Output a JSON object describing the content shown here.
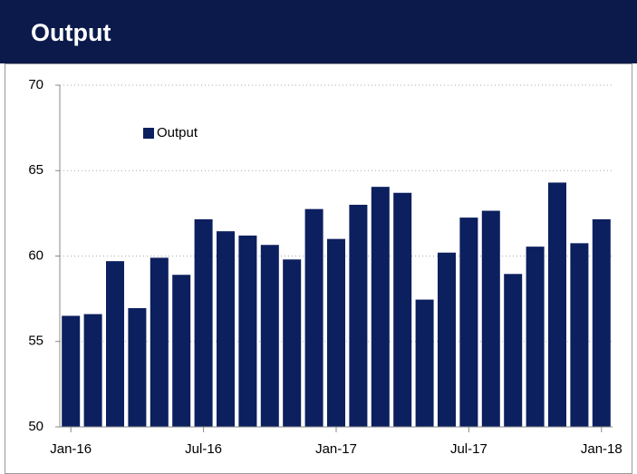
{
  "chart_data": {
    "type": "bar",
    "title": "Output",
    "categories": [
      "Jan-16",
      null,
      null,
      null,
      null,
      null,
      "Jul-16",
      null,
      null,
      null,
      null,
      null,
      "Jan-17",
      null,
      null,
      null,
      null,
      null,
      "Jul-17",
      null,
      null,
      null,
      null,
      null,
      "Jan-18"
    ],
    "series": [
      {
        "name": "Output",
        "color": "#0c1f5e",
        "values": [
          56.5,
          56.6,
          59.7,
          56.95,
          59.9,
          58.9,
          62.15,
          61.45,
          61.2,
          60.65,
          59.8,
          62.75,
          61.0,
          63.0,
          64.05,
          63.7,
          57.45,
          60.2,
          62.25,
          62.65,
          58.95,
          60.55,
          64.3,
          60.75,
          62.15
        ]
      }
    ],
    "ylim": [
      50,
      70
    ],
    "yticks": [
      50,
      55,
      60,
      65,
      70
    ],
    "grid": true,
    "legend": "upper-left"
  }
}
